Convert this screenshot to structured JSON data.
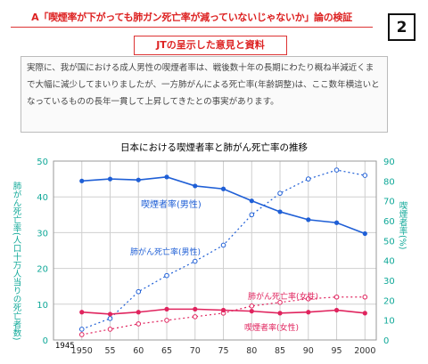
{
  "header": {
    "title": "A「喫煙率が下がっても肺ガン死亡率が減っていないじゃないか」論の検証",
    "page_number": "2",
    "subtitle": "JTの呈示した意見と資料"
  },
  "quote_text": "実際に、我が国における成人男性の喫煙者率は、戦後数十年の長期にわたり概ね半減近くまで大幅に減少してまいりましたが、一方肺がんによる死亡率(年齢調整)は、ここ数年横這いとなっているものの長年一貫して上昇してきたとの事実があります。",
  "colors": {
    "blue": "#1f5fd6",
    "red": "#e0245e",
    "teal": "#0fa898",
    "grid": "#cfcfcf"
  },
  "chart_data": {
    "type": "line",
    "title": "日本における喫煙者率と肺がん死亡率の推移",
    "x": [
      1950,
      1955,
      1960,
      1965,
      1970,
      1975,
      1980,
      1985,
      1990,
      1995,
      2000
    ],
    "x_tick_labels": [
      "1950",
      "55",
      "60",
      "65",
      "70",
      "75",
      "80",
      "85",
      "90",
      "95",
      "2000"
    ],
    "x_start_label": "1945",
    "left_axis": {
      "label": "肺がん死亡率(人口十万人当りの死亡者数)",
      "ylim": [
        0,
        50
      ],
      "ticks": [
        0,
        10,
        20,
        30,
        40,
        50
      ]
    },
    "right_axis": {
      "label": "喫煙者率(%)",
      "ylim": [
        0,
        90
      ],
      "ticks": [
        0,
        10,
        20,
        30,
        40,
        50,
        60,
        70,
        80,
        90
      ]
    },
    "series": [
      {
        "name": "喫煙者率(男性)",
        "axis": "right",
        "style": "solid",
        "color": "blue",
        "values": [
          80,
          81,
          80.5,
          82,
          77.5,
          76,
          70,
          64.5,
          60.5,
          59,
          53.5
        ]
      },
      {
        "name": "肺がん死亡率(男性)",
        "axis": "left",
        "style": "dotted",
        "color": "blue",
        "values": [
          3,
          6,
          13.5,
          18,
          22,
          26.5,
          35,
          41,
          45,
          47.5,
          46
        ]
      },
      {
        "name": "肺がん死亡率(女性)",
        "axis": "left",
        "style": "dotted",
        "color": "red",
        "values": [
          1.5,
          3,
          4.5,
          5.5,
          6.5,
          7.5,
          9.5,
          10.5,
          11.5,
          12,
          12
        ]
      },
      {
        "name": "喫煙者率(女性)",
        "axis": "right",
        "style": "solid",
        "color": "red",
        "values": [
          14,
          13,
          14,
          15.5,
          15.5,
          15,
          14.5,
          13.5,
          14,
          15,
          13.5
        ]
      }
    ]
  }
}
